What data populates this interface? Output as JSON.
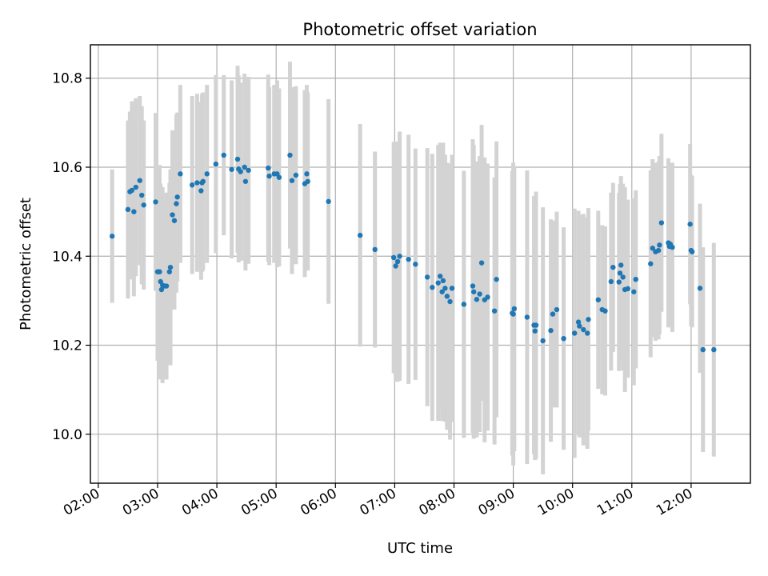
{
  "chart_data": {
    "type": "scatter",
    "title": "Photometric offset variation",
    "xlabel": "UTC time",
    "ylabel": "Photometric offset",
    "xlim": [
      "01:52",
      "13:00"
    ],
    "ylim": [
      9.89,
      10.875
    ],
    "x_ticks": [
      "02:00",
      "03:00",
      "04:00",
      "05:00",
      "06:00",
      "07:00",
      "08:00",
      "09:00",
      "10:00",
      "11:00",
      "12:00"
    ],
    "y_ticks": [
      10.0,
      10.2,
      10.4,
      10.6,
      10.8
    ],
    "y_tick_labels": [
      "10.0",
      "10.2",
      "10.4",
      "10.6",
      "10.8"
    ],
    "grid": true,
    "colors": {
      "point": "#1f77b4",
      "errorbar": "#d3d3d3",
      "grid": "#b0b0b0"
    },
    "series": [
      {
        "x": [
          "02:14",
          "02:30",
          "02:32",
          "02:34",
          "02:36",
          "02:38",
          "02:42",
          "02:44",
          "02:46",
          "02:58",
          "03:00",
          "03:02",
          "03:03",
          "03:04",
          "03:05",
          "03:07",
          "03:09",
          "03:12",
          "03:13",
          "03:15",
          "03:17",
          "03:19",
          "03:20",
          "03:23",
          "03:35",
          "03:40",
          "03:44",
          "03:45",
          "03:46",
          "03:50",
          "03:59",
          "04:07",
          "04:15",
          "04:21",
          "04:22",
          "04:24",
          "04:28",
          "04:29",
          "04:32",
          "04:52",
          "04:53",
          "04:58",
          "05:01",
          "05:03",
          "05:14",
          "05:16",
          "05:20",
          "05:29",
          "05:31",
          "05:32",
          "05:53",
          "06:25",
          "06:40",
          "06:59",
          "07:01",
          "07:03",
          "07:05",
          "07:14",
          "07:21",
          "07:33",
          "07:38",
          "07:44",
          "07:46",
          "07:48",
          "07:49",
          "07:51",
          "07:53",
          "07:56",
          "07:58",
          "08:10",
          "08:19",
          "08:20",
          "08:23",
          "08:26",
          "08:28",
          "08:31",
          "08:34",
          "08:41",
          "08:43",
          "08:59",
          "09:00",
          "09:01",
          "09:14",
          "09:21",
          "09:22",
          "09:23",
          "09:30",
          "09:38",
          "09:40",
          "09:44",
          "09:51",
          "10:02",
          "10:06",
          "10:07",
          "10:11",
          "10:15",
          "10:16",
          "10:26",
          "10:30",
          "10:33",
          "10:39",
          "10:41",
          "10:47",
          "10:48",
          "10:49",
          "10:51",
          "10:53",
          "10:56",
          "11:02",
          "11:04",
          "11:19",
          "11:21",
          "11:24",
          "11:27",
          "11:28",
          "11:30",
          "11:37",
          "11:38",
          "11:39",
          "11:41",
          "11:59",
          "12:00",
          "12:01",
          "12:09",
          "12:12",
          "12:23"
        ],
        "y": [
          10.445,
          10.505,
          10.545,
          10.548,
          10.5,
          10.555,
          10.57,
          10.537,
          10.515,
          10.522,
          10.365,
          10.365,
          10.343,
          10.325,
          10.335,
          10.333,
          10.333,
          10.365,
          10.375,
          10.493,
          10.48,
          10.518,
          10.533,
          10.585,
          10.56,
          10.565,
          10.547,
          10.565,
          10.568,
          10.585,
          10.607,
          10.627,
          10.595,
          10.618,
          10.596,
          10.59,
          10.6,
          10.568,
          10.593,
          10.598,
          10.58,
          10.585,
          10.585,
          10.577,
          10.627,
          10.57,
          10.582,
          10.563,
          10.585,
          10.568,
          10.523,
          10.447,
          10.415,
          10.397,
          10.378,
          10.388,
          10.4,
          10.393,
          10.382,
          10.353,
          10.33,
          10.34,
          10.355,
          10.32,
          10.345,
          10.328,
          10.31,
          10.298,
          10.328,
          10.292,
          10.333,
          10.32,
          10.303,
          10.315,
          10.385,
          10.302,
          10.308,
          10.277,
          10.348,
          10.272,
          10.27,
          10.282,
          10.263,
          10.245,
          10.232,
          10.245,
          10.21,
          10.233,
          10.27,
          10.28,
          10.215,
          10.227,
          10.252,
          10.243,
          10.235,
          10.227,
          10.258,
          10.302,
          10.28,
          10.277,
          10.343,
          10.375,
          10.342,
          10.362,
          10.38,
          10.353,
          10.325,
          10.327,
          10.32,
          10.348,
          10.383,
          10.418,
          10.41,
          10.413,
          10.425,
          10.475,
          10.43,
          10.422,
          10.427,
          10.42,
          10.472,
          10.413,
          10.41,
          10.328,
          10.19,
          10.19
        ],
        "yerr": [
          0.15,
          0.2,
          0.18,
          0.2,
          0.19,
          0.2,
          0.19,
          0.2,
          0.19,
          0.2,
          0.2,
          0.24,
          0.22,
          0.2,
          0.22,
          0.2,
          0.21,
          0.2,
          0.22,
          0.19,
          0.2,
          0.2,
          0.19,
          0.2,
          0.2,
          0.2,
          0.2,
          0.2,
          0.2,
          0.2,
          0.2,
          0.18,
          0.2,
          0.21,
          0.21,
          0.2,
          0.21,
          0.2,
          0.21,
          0.21,
          0.2,
          0.2,
          0.21,
          0.2,
          0.21,
          0.21,
          0.2,
          0.21,
          0.2,
          0.2,
          0.23,
          0.25,
          0.22,
          0.26,
          0.26,
          0.27,
          0.28,
          0.28,
          0.26,
          0.29,
          0.3,
          0.31,
          0.3,
          0.29,
          0.31,
          0.3,
          0.3,
          0.31,
          0.3,
          0.3,
          0.33,
          0.33,
          0.31,
          0.31,
          0.31,
          0.32,
          0.3,
          0.3,
          0.31,
          0.32,
          0.34,
          0.32,
          0.33,
          0.29,
          0.29,
          0.3,
          0.3,
          0.25,
          0.21,
          0.22,
          0.25,
          0.28,
          0.25,
          0.25,
          0.26,
          0.26,
          0.25,
          0.2,
          0.19,
          0.19,
          0.2,
          0.19,
          0.2,
          0.2,
          0.2,
          0.21,
          0.23,
          0.2,
          0.21,
          0.2,
          0.21,
          0.2,
          0.2,
          0.2,
          0.2,
          0.2,
          0.19,
          0.18,
          0.18,
          0.19,
          0.18,
          0.17,
          0.17,
          0.19,
          0.23,
          0.24
        ]
      }
    ]
  }
}
